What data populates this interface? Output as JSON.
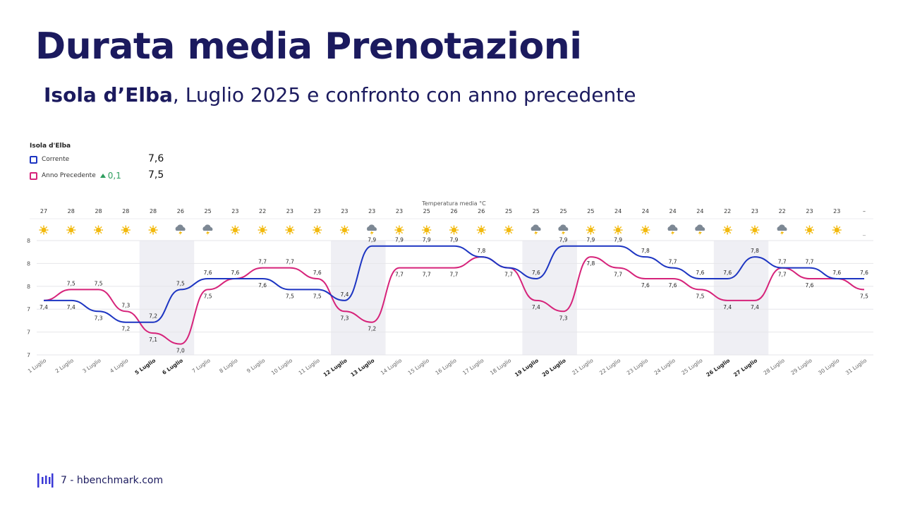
{
  "header": {
    "title": "Durata media Prenotazioni",
    "subtitle_bold": "Isola d’Elba",
    "subtitle_rest": ", Luglio 2025 e confronto con anno precedente"
  },
  "legend": {
    "heading": "Isola d'Elba",
    "current_label": "Corrente",
    "current_value": "7,6",
    "previous_label": "Anno Precedente",
    "delta": "0,1",
    "previous_value": "7,5",
    "current_color": "#1d35c2",
    "previous_color": "#d6237a"
  },
  "footer": {
    "text": "7 - hbenchmark.com"
  },
  "chart_data": {
    "type": "line",
    "temperature_header": "Temperatura media °C",
    "categories": [
      "1 Luglio",
      "2 Luglio",
      "3 Luglio",
      "4 Luglio",
      "5 Luglio",
      "6 Luglio",
      "7 Luglio",
      "8 Luglio",
      "9 Luglio",
      "10 Luglio",
      "11 Luglio",
      "12 Luglio",
      "13 Luglio",
      "14 Luglio",
      "15 Luglio",
      "16 Luglio",
      "17 Luglio",
      "18 Luglio",
      "19 Luglio",
      "20 Luglio",
      "21 Luglio",
      "22 Luglio",
      "23 Luglio",
      "24 Luglio",
      "25 Luglio",
      "26 Luglio",
      "27 Luglio",
      "28 Luglio",
      "29 Luglio",
      "30 Luglio",
      "31 Luglio"
    ],
    "bold_categories": [
      "5 Luglio",
      "6 Luglio",
      "12 Luglio",
      "13 Luglio",
      "19 Luglio",
      "20 Luglio",
      "26 Luglio",
      "27 Luglio"
    ],
    "temperatures": [
      "27",
      "28",
      "28",
      "28",
      "28",
      "26",
      "25",
      "23",
      "22",
      "23",
      "23",
      "23",
      "23",
      "23",
      "25",
      "26",
      "26",
      "25",
      "25",
      "25",
      "25",
      "24",
      "24",
      "24",
      "24",
      "22",
      "23",
      "22",
      "23",
      "23",
      "–"
    ],
    "weather_icons": [
      "sun",
      "sun",
      "sun",
      "sun",
      "sun",
      "storm",
      "storm",
      "sun",
      "sun",
      "sun",
      "sun",
      "sun",
      "storm",
      "sun",
      "sun",
      "sun",
      "sun",
      "sun",
      "storm",
      "storm",
      "sun",
      "sun",
      "sun",
      "storm",
      "storm",
      "sun",
      "sun",
      "storm",
      "sun",
      "sun",
      "none"
    ],
    "series": [
      {
        "name": "Corrente",
        "values": [
          7.4,
          7.4,
          7.3,
          7.2,
          7.2,
          7.5,
          7.6,
          7.6,
          7.6,
          7.5,
          7.5,
          7.4,
          7.9,
          7.9,
          7.9,
          7.9,
          7.8,
          7.7,
          7.6,
          7.9,
          7.9,
          7.9,
          7.8,
          7.7,
          7.6,
          7.6,
          7.8,
          7.7,
          7.7,
          7.6,
          7.6
        ],
        "labels": [
          "",
          "7,4",
          "7,3",
          "7,2",
          "7,2",
          "7,5",
          "7,6",
          "7,6",
          "7,6",
          "7,5",
          "7,5",
          "7,4",
          "7,9",
          "7,9",
          "7,9",
          "7,9",
          "7,8",
          "",
          "7,6",
          "7,9",
          "7,9",
          "7,9",
          "7,8",
          "7,7",
          "7,6",
          "7,6",
          "7,8",
          "7,7",
          "7,7",
          "7,6",
          "7,6"
        ]
      },
      {
        "name": "Anno Precedente",
        "values": [
          7.4,
          7.5,
          7.5,
          7.3,
          7.1,
          7.0,
          7.5,
          7.6,
          7.7,
          7.7,
          7.6,
          7.3,
          7.2,
          7.7,
          7.7,
          7.7,
          7.8,
          7.7,
          7.4,
          7.3,
          7.8,
          7.7,
          7.6,
          7.6,
          7.5,
          7.4,
          7.4,
          7.7,
          7.6,
          7.6,
          7.5
        ],
        "labels": [
          "7,4",
          "7,5",
          "7,5",
          "7,3",
          "7,1",
          "7,0",
          "7,5",
          "",
          "7,7",
          "7,7",
          "7,6",
          "7,3",
          "7,2",
          "7,7",
          "7,7",
          "7,7",
          "",
          "7,7",
          "7,4",
          "7,3",
          "7,8",
          "7,7",
          "7,6",
          "7,6",
          "7,5",
          "7,4",
          "7,4",
          "7,7",
          "7,6",
          "",
          "7,5"
        ]
      }
    ],
    "y_tick_labels": [
      "7",
      "7",
      "7",
      "8",
      "8",
      "8"
    ],
    "ylim": [
      6.9,
      7.95
    ],
    "weekend_bands": [
      [
        "5 Luglio",
        "6 Luglio"
      ],
      [
        "12 Luglio",
        "13 Luglio"
      ],
      [
        "19 Luglio",
        "20 Luglio"
      ],
      [
        "26 Luglio",
        "27 Luglio"
      ]
    ],
    "grid": true
  }
}
